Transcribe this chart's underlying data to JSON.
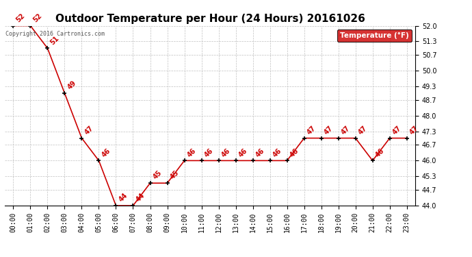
{
  "title": "Outdoor Temperature per Hour (24 Hours) 20161026",
  "hours": [
    "00:00",
    "01:00",
    "02:00",
    "03:00",
    "04:00",
    "05:00",
    "06:00",
    "07:00",
    "08:00",
    "09:00",
    "10:00",
    "11:00",
    "12:00",
    "13:00",
    "14:00",
    "15:00",
    "16:00",
    "17:00",
    "18:00",
    "19:00",
    "20:00",
    "21:00",
    "22:00",
    "23:00"
  ],
  "temps": [
    52,
    52,
    51,
    49,
    47,
    46,
    44,
    44,
    45,
    45,
    46,
    46,
    46,
    46,
    46,
    46,
    46,
    47,
    47,
    47,
    47,
    46,
    47,
    47
  ],
  "ylim": [
    44.0,
    52.0
  ],
  "yticks": [
    44.0,
    44.7,
    45.3,
    46.0,
    46.7,
    47.3,
    48.0,
    48.7,
    49.3,
    50.0,
    50.7,
    51.3,
    52.0
  ],
  "line_color": "#cc0000",
  "marker_color": "#000000",
  "label_color": "#cc0000",
  "legend_label": "Temperature (°F)",
  "legend_bg": "#cc0000",
  "legend_text_color": "#ffffff",
  "copyright_text": "Copyright 2016 Cartronics.com",
  "background_color": "#ffffff",
  "grid_color": "#c0c0c0",
  "title_fontsize": 11,
  "tick_fontsize": 7,
  "label_fontsize": 7
}
